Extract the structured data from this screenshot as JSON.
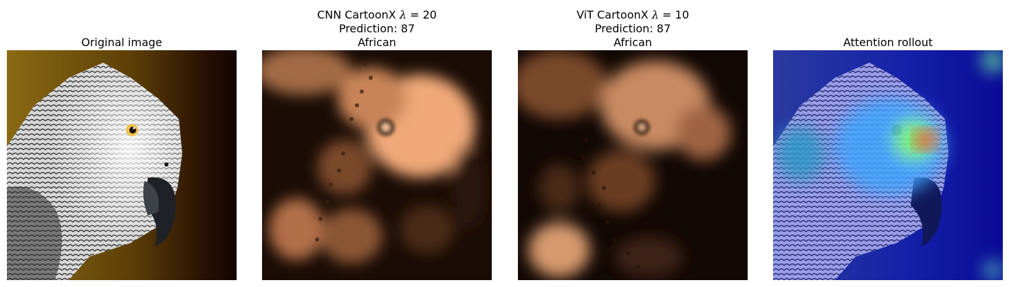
{
  "panels": [
    {
      "id": "original",
      "title_lines": [
        {
          "text": "Original image"
        }
      ],
      "image": "parrot-photo"
    },
    {
      "id": "cnn-cartoonx",
      "title_lines": [
        {
          "pre": "CNN CartoonX ",
          "lambda": "λ",
          "post": " = 20"
        },
        {
          "text": "Prediction: 87"
        },
        {
          "text": "African"
        }
      ],
      "image": "cnn-cartoonx-heatmap"
    },
    {
      "id": "vit-cartoonx",
      "title_lines": [
        {
          "pre": "ViT CartoonX ",
          "lambda": "λ",
          "post": " = 10"
        },
        {
          "text": "Prediction: 87"
        },
        {
          "text": "African"
        }
      ],
      "image": "vit-cartoonx-heatmap"
    },
    {
      "id": "attention-rollout",
      "title_lines": [
        {
          "text": "Attention rollout"
        }
      ],
      "image": "attention-rollout-overlay"
    }
  ]
}
